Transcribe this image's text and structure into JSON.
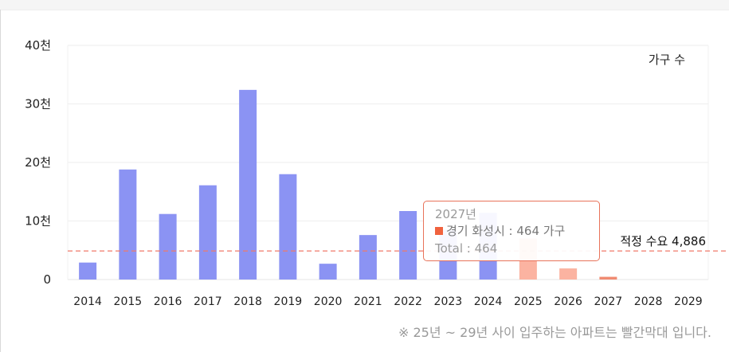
{
  "chart_data": {
    "type": "bar",
    "categories": [
      "2014",
      "2015",
      "2016",
      "2017",
      "2018",
      "2019",
      "2020",
      "2021",
      "2022",
      "2023",
      "2024",
      "2025",
      "2026",
      "2027",
      "2028",
      "2029"
    ],
    "values": [
      2900,
      18800,
      11200,
      16100,
      32400,
      18000,
      2700,
      7600,
      11700,
      8500,
      11400,
      7000,
      1900,
      464,
      0,
      0
    ],
    "y_tick_labels": [
      "0",
      "10천",
      "20천",
      "30천",
      "40천"
    ],
    "ylim": [
      0,
      40000
    ],
    "grid": true,
    "legend": {
      "label": "가구 수",
      "position": "top-right"
    },
    "colors": {
      "past": "#8b93f3",
      "future": "#fbb3a1",
      "highlight": "#f08b72",
      "reference": "#f07a6a"
    },
    "future_from": "2025",
    "highlight_category": "2027",
    "reference_line": {
      "value": 4886,
      "label": "적정 수요 4,886"
    }
  },
  "tooltip": {
    "title": "2027년",
    "series_label": "경기 화성시 : 464 가구",
    "total": "Total : 464"
  },
  "footnote": "※ 25년 ~ 29년 사이 입주하는 아파트는 빨간막대 입니다."
}
